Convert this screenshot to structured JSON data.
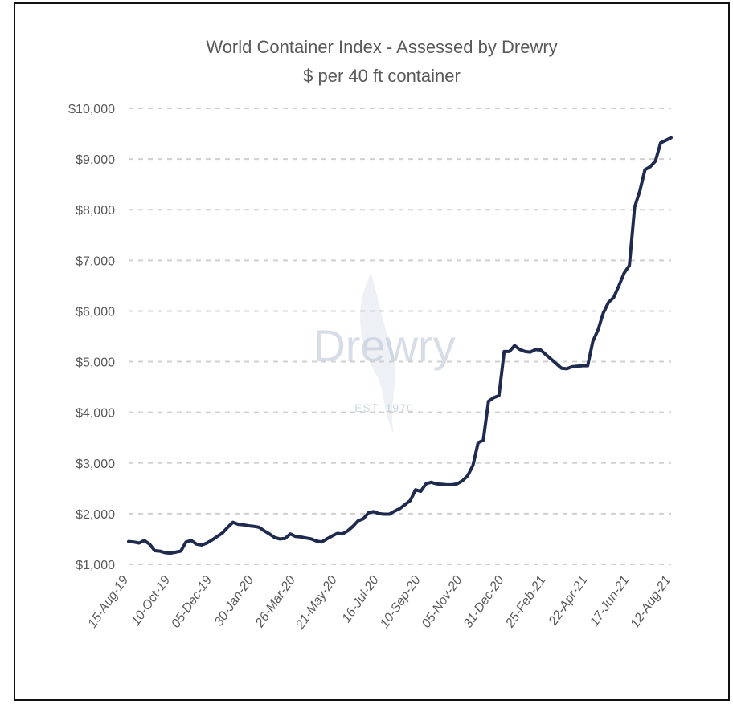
{
  "chart_data": {
    "type": "line",
    "title": "World Container Index - Assessed by Drewry",
    "subtitle": "$ per 40 ft container",
    "xlabel": "",
    "ylabel": "",
    "ylim": [
      1000,
      10000
    ],
    "yticks": [
      "$1,000",
      "$2,000",
      "$3,000",
      "$4,000",
      "$5,000",
      "$6,000",
      "$7,000",
      "$8,000",
      "$9,000",
      "$10,000"
    ],
    "x_tick_labels": [
      "15-Aug-19",
      "10-Oct-19",
      "05-Dec-19",
      "30-Jan-20",
      "26-Mar-20",
      "21-May-20",
      "16-Jul-20",
      "10-Sep-20",
      "05-Nov-20",
      "31-Dec-20",
      "25-Feb-21",
      "22-Apr-21",
      "17-Jun-21",
      "12-Aug-21"
    ],
    "grid": "horizontal dashed",
    "legend": "none",
    "line_color": "#1f2a4f",
    "series": [
      {
        "name": "",
        "x": [
          "15-Aug-19",
          "22-Aug-19",
          "29-Aug-19",
          "05-Sep-19",
          "12-Sep-19",
          "19-Sep-19",
          "26-Sep-19",
          "03-Oct-19",
          "10-Oct-19",
          "17-Oct-19",
          "24-Oct-19",
          "31-Oct-19",
          "07-Nov-19",
          "14-Nov-19",
          "21-Nov-19",
          "28-Nov-19",
          "05-Dec-19",
          "12-Dec-19",
          "19-Dec-19",
          "26-Dec-19",
          "02-Jan-20",
          "09-Jan-20",
          "16-Jan-20",
          "23-Jan-20",
          "30-Jan-20",
          "06-Feb-20",
          "13-Feb-20",
          "20-Feb-20",
          "27-Feb-20",
          "05-Mar-20",
          "12-Mar-20",
          "19-Mar-20",
          "26-Mar-20",
          "02-Apr-20",
          "09-Apr-20",
          "16-Apr-20",
          "23-Apr-20",
          "30-Apr-20",
          "07-May-20",
          "14-May-20",
          "21-May-20",
          "28-May-20",
          "04-Jun-20",
          "11-Jun-20",
          "18-Jun-20",
          "25-Jun-20",
          "02-Jul-20",
          "09-Jul-20",
          "16-Jul-20",
          "23-Jul-20",
          "30-Jul-20",
          "06-Aug-20",
          "13-Aug-20",
          "20-Aug-20",
          "27-Aug-20",
          "03-Sep-20",
          "10-Sep-20",
          "17-Sep-20",
          "24-Sep-20",
          "01-Oct-20",
          "08-Oct-20",
          "15-Oct-20",
          "22-Oct-20",
          "29-Oct-20",
          "05-Nov-20",
          "12-Nov-20",
          "19-Nov-20",
          "26-Nov-20",
          "03-Dec-20",
          "10-Dec-20",
          "17-Dec-20",
          "24-Dec-20",
          "31-Dec-20",
          "07-Jan-21",
          "14-Jan-21",
          "21-Jan-21",
          "28-Jan-21",
          "04-Feb-21",
          "11-Feb-21",
          "18-Feb-21",
          "25-Feb-21",
          "04-Mar-21",
          "11-Mar-21",
          "18-Mar-21",
          "25-Mar-21",
          "01-Apr-21",
          "08-Apr-21",
          "15-Apr-21",
          "22-Apr-21",
          "29-Apr-21",
          "06-May-21",
          "13-May-21",
          "20-May-21",
          "27-May-21",
          "03-Jun-21",
          "10-Jun-21",
          "17-Jun-21",
          "24-Jun-21",
          "01-Jul-21",
          "08-Jul-21",
          "15-Jul-21",
          "22-Jul-21",
          "29-Jul-21",
          "05-Aug-21",
          "12-Aug-21"
        ],
        "values": [
          1450,
          1440,
          1420,
          1470,
          1400,
          1270,
          1260,
          1230,
          1220,
          1240,
          1260,
          1440,
          1470,
          1400,
          1380,
          1420,
          1480,
          1550,
          1620,
          1730,
          1830,
          1790,
          1780,
          1760,
          1750,
          1730,
          1660,
          1600,
          1530,
          1500,
          1510,
          1600,
          1550,
          1540,
          1520,
          1500,
          1460,
          1440,
          1500,
          1560,
          1610,
          1600,
          1660,
          1750,
          1860,
          1900,
          2020,
          2040,
          2000,
          1990,
          1990,
          2050,
          2100,
          2180,
          2260,
          2470,
          2440,
          2590,
          2620,
          2590,
          2580,
          2570,
          2570,
          2590,
          2650,
          2750,
          2950,
          3400,
          3450,
          4220,
          4290,
          4330,
          5200,
          5200,
          5320,
          5240,
          5200,
          5190,
          5240,
          5230,
          5140,
          5050,
          4960,
          4870,
          4860,
          4900,
          4910,
          4920,
          4920,
          5400,
          5630,
          5960,
          6170,
          6270,
          6500,
          6750,
          6900,
          8050,
          8370,
          8790,
          8850,
          8960,
          9320,
          9370,
          9420
        ]
      }
    ]
  },
  "watermark": {
    "brand": "Drewry",
    "established": "EST. 1970"
  }
}
